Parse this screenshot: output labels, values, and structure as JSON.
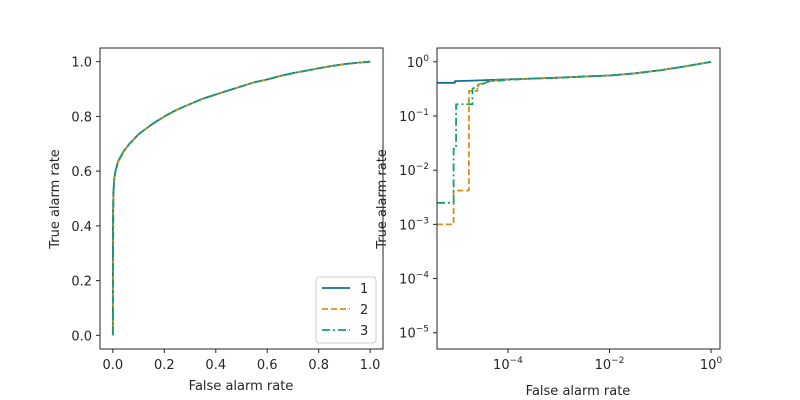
{
  "chart_data": [
    {
      "type": "line",
      "xlabel": "False alarm rate",
      "ylabel": "True alarm rate",
      "xlim": [
        -0.05,
        1.05
      ],
      "ylim": [
        -0.05,
        1.05
      ],
      "xscale": "linear",
      "yscale": "linear",
      "xticks": [
        0.0,
        0.2,
        0.4,
        0.6,
        0.8,
        1.0
      ],
      "xtick_labels": [
        "0.0",
        "0.2",
        "0.4",
        "0.6",
        "0.8",
        "1.0"
      ],
      "yticks": [
        0.0,
        0.2,
        0.4,
        0.6,
        0.8,
        1.0
      ],
      "ytick_labels": [
        "0.0",
        "0.2",
        "0.4",
        "0.6",
        "0.8",
        "1.0"
      ],
      "grid": false,
      "legend": "lower-right",
      "series": [
        {
          "name": "1",
          "color": "#0f6f8f",
          "style": "solid",
          "x": [
            0,
            0,
            0.002,
            0.005,
            0.01,
            0.02,
            0.04,
            0.06,
            0.08,
            0.1,
            0.15,
            0.2,
            0.25,
            0.3,
            0.35,
            0.4,
            0.45,
            0.5,
            0.55,
            0.6,
            0.65,
            0.7,
            0.75,
            0.8,
            0.85,
            0.9,
            0.95,
            1.0
          ],
          "y": [
            0,
            0.42,
            0.52,
            0.57,
            0.6,
            0.635,
            0.67,
            0.695,
            0.715,
            0.735,
            0.77,
            0.8,
            0.825,
            0.845,
            0.865,
            0.88,
            0.895,
            0.91,
            0.925,
            0.935,
            0.948,
            0.958,
            0.967,
            0.976,
            0.984,
            0.991,
            0.996,
            1.0
          ]
        },
        {
          "name": "2",
          "color": "#d4921c",
          "style": "dashed",
          "x": [
            0,
            0,
            0.002,
            0.005,
            0.01,
            0.02,
            0.04,
            0.06,
            0.08,
            0.1,
            0.15,
            0.2,
            0.25,
            0.3,
            0.35,
            0.4,
            0.45,
            0.5,
            0.55,
            0.6,
            0.65,
            0.7,
            0.75,
            0.8,
            0.85,
            0.9,
            0.95,
            1.0
          ],
          "y": [
            0,
            0.001,
            0.51,
            0.565,
            0.6,
            0.633,
            0.668,
            0.694,
            0.714,
            0.734,
            0.769,
            0.799,
            0.824,
            0.845,
            0.864,
            0.88,
            0.895,
            0.91,
            0.924,
            0.935,
            0.947,
            0.958,
            0.967,
            0.976,
            0.984,
            0.991,
            0.996,
            1.0
          ]
        },
        {
          "name": "3",
          "color": "#169e78",
          "style": "dashdot",
          "x": [
            0,
            0,
            0.002,
            0.005,
            0.01,
            0.02,
            0.04,
            0.06,
            0.08,
            0.1,
            0.15,
            0.2,
            0.25,
            0.3,
            0.35,
            0.4,
            0.45,
            0.5,
            0.55,
            0.6,
            0.65,
            0.7,
            0.75,
            0.8,
            0.85,
            0.9,
            0.95,
            1.0
          ],
          "y": [
            0,
            0.0025,
            0.515,
            0.567,
            0.6,
            0.634,
            0.669,
            0.695,
            0.715,
            0.735,
            0.77,
            0.8,
            0.825,
            0.845,
            0.865,
            0.88,
            0.895,
            0.91,
            0.925,
            0.935,
            0.948,
            0.958,
            0.967,
            0.976,
            0.984,
            0.991,
            0.996,
            1.0
          ]
        }
      ]
    },
    {
      "type": "line",
      "xlabel": "False alarm rate",
      "ylabel": "True alarm rate",
      "xlim": [
        4e-06,
        1.5
      ],
      "ylim": [
        5e-06,
        1.8
      ],
      "xscale": "log",
      "yscale": "log",
      "xticks": [
        0.0001,
        0.01,
        1
      ],
      "xtick_labels": [
        [
          "10",
          "−4"
        ],
        [
          "10",
          "−2"
        ],
        [
          "10",
          "0"
        ]
      ],
      "yticks": [
        1e-05,
        0.0001,
        0.001,
        0.01,
        0.1,
        1
      ],
      "ytick_labels": [
        [
          "10",
          "−5"
        ],
        [
          "10",
          "−4"
        ],
        [
          "10",
          "−3"
        ],
        [
          "10",
          "−2"
        ],
        [
          "10",
          "−1"
        ],
        [
          "10",
          "0"
        ]
      ],
      "grid": false,
      "series": [
        {
          "name": "1",
          "color": "#0f6f8f",
          "style": "solid",
          "x": [
            4e-06,
            9e-06,
            9e-06,
            2e-05,
            5e-05,
            0.0001,
            0.0003,
            0.001,
            0.003,
            0.01,
            0.03,
            0.1,
            0.3,
            1.0
          ],
          "y": [
            0.41,
            0.41,
            0.44,
            0.45,
            0.465,
            0.475,
            0.49,
            0.51,
            0.535,
            0.56,
            0.61,
            0.7,
            0.82,
            1.0
          ]
        },
        {
          "name": "2",
          "color": "#d4921c",
          "style": "dashed",
          "x": [
            4e-06,
            8.5e-06,
            8.5e-06,
            1.7e-05,
            1.7e-05,
            2.5e-05,
            2.5e-05,
            5e-05,
            0.0001,
            0.0003,
            0.001,
            0.003,
            0.01,
            0.03,
            0.1,
            0.3,
            1.0
          ],
          "y": [
            0.001,
            0.001,
            0.0042,
            0.0042,
            0.29,
            0.29,
            0.38,
            0.45,
            0.47,
            0.49,
            0.51,
            0.535,
            0.56,
            0.61,
            0.7,
            0.82,
            1.0
          ]
        },
        {
          "name": "3",
          "color": "#169e78",
          "style": "dashdot",
          "x": [
            4e-06,
            8.5e-06,
            8.5e-06,
            9.5e-06,
            9.5e-06,
            2e-05,
            2e-05,
            4e-05,
            0.0001,
            0.0003,
            0.001,
            0.003,
            0.01,
            0.03,
            0.1,
            0.3,
            1.0
          ],
          "y": [
            0.0025,
            0.0025,
            0.025,
            0.025,
            0.165,
            0.165,
            0.32,
            0.43,
            0.465,
            0.49,
            0.51,
            0.535,
            0.56,
            0.61,
            0.7,
            0.82,
            1.0
          ]
        }
      ]
    }
  ]
}
